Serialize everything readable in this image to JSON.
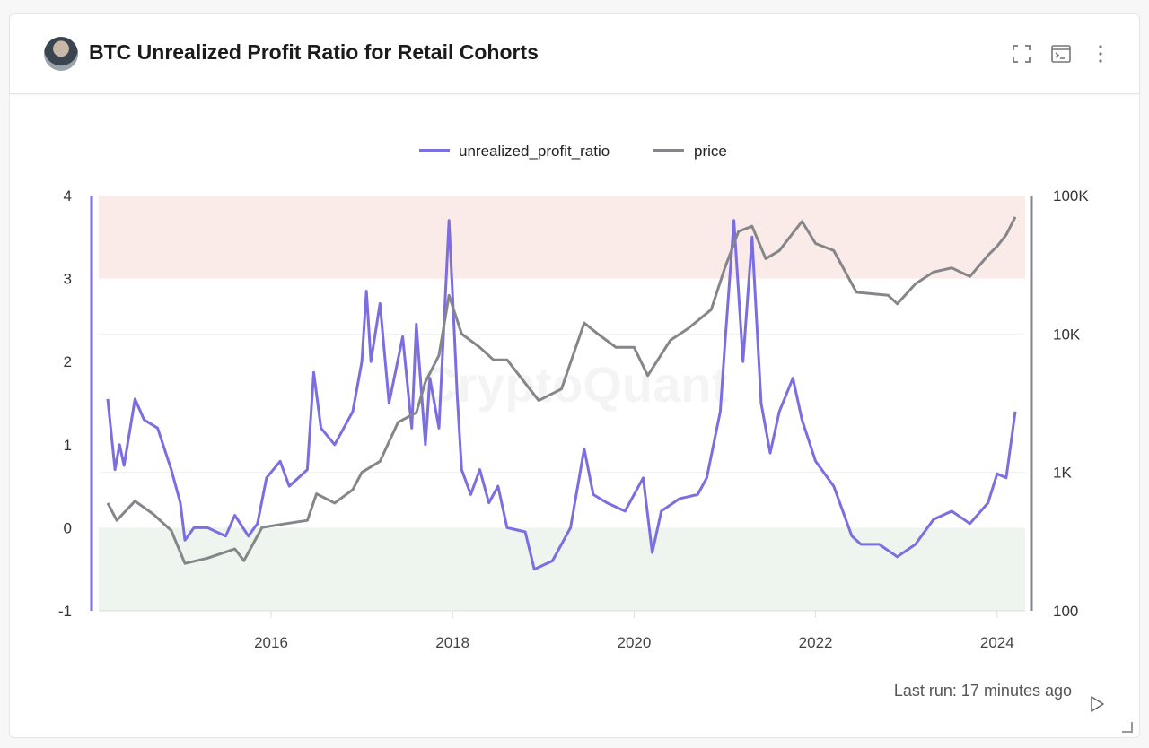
{
  "header": {
    "title": "BTC Unrealized Profit Ratio for Retail Cohorts",
    "icons": [
      "avatar",
      "fullscreen-icon",
      "terminal-icon",
      "more-vertical-icon"
    ]
  },
  "watermark": "CryptoQuant",
  "footer": {
    "last_run": "Last run: 17 minutes ago",
    "icon": "play-icon"
  },
  "chart_data": {
    "type": "line",
    "title": "",
    "legend": "top-center",
    "x_ticks": [
      "2016",
      "2018",
      "2020",
      "2022",
      "2024"
    ],
    "y_left": {
      "range": [
        -1,
        4
      ],
      "ticks": [
        "4",
        "3",
        "2",
        "1",
        "0",
        "-1"
      ]
    },
    "y_right": {
      "scale": "log",
      "range": [
        100,
        100000
      ],
      "ticks": [
        "100K",
        "10K",
        "1K",
        "100"
      ]
    },
    "bands": [
      {
        "from": 3,
        "to": 4,
        "color": "#fbebe8"
      },
      {
        "from": -1,
        "to": 0,
        "color": "#edf5ee"
      }
    ],
    "series": [
      {
        "name": "unrealized_profit_ratio",
        "axis": "left",
        "color": "#7b6ee0",
        "x": [
          2014.2,
          2014.28,
          2014.33,
          2014.38,
          2014.5,
          2014.6,
          2014.75,
          2014.9,
          2015.0,
          2015.05,
          2015.15,
          2015.3,
          2015.5,
          2015.6,
          2015.75,
          2015.85,
          2015.95,
          2016.1,
          2016.2,
          2016.4,
          2016.47,
          2016.55,
          2016.7,
          2016.9,
          2017.0,
          2017.05,
          2017.1,
          2017.2,
          2017.3,
          2017.45,
          2017.55,
          2017.6,
          2017.7,
          2017.75,
          2017.85,
          2017.96,
          2018.0,
          2018.05,
          2018.1,
          2018.2,
          2018.3,
          2018.4,
          2018.5,
          2018.6,
          2018.8,
          2018.9,
          2019.1,
          2019.3,
          2019.45,
          2019.55,
          2019.7,
          2019.9,
          2020.1,
          2020.2,
          2020.3,
          2020.5,
          2020.7,
          2020.8,
          2020.95,
          2021.0,
          2021.1,
          2021.2,
          2021.3,
          2021.4,
          2021.5,
          2021.6,
          2021.75,
          2021.85,
          2022.0,
          2022.2,
          2022.4,
          2022.5,
          2022.7,
          2022.9,
          2023.1,
          2023.3,
          2023.5,
          2023.7,
          2023.9,
          2024.0,
          2024.1,
          2024.2
        ],
        "y": [
          1.55,
          0.7,
          1.0,
          0.75,
          1.55,
          1.3,
          1.2,
          0.7,
          0.3,
          -0.15,
          0.0,
          0.0,
          -0.1,
          0.15,
          -0.1,
          0.05,
          0.6,
          0.8,
          0.5,
          0.7,
          1.87,
          1.2,
          1.0,
          1.4,
          2.0,
          2.85,
          2.0,
          2.7,
          1.5,
          2.3,
          1.2,
          2.45,
          1.0,
          1.8,
          1.2,
          3.7,
          2.8,
          1.6,
          0.7,
          0.4,
          0.7,
          0.3,
          0.5,
          0.0,
          -0.05,
          -0.5,
          -0.4,
          0.0,
          0.95,
          0.4,
          0.3,
          0.2,
          0.6,
          -0.3,
          0.2,
          0.35,
          0.4,
          0.6,
          1.4,
          2.2,
          3.7,
          2.0,
          3.5,
          1.5,
          0.9,
          1.4,
          1.8,
          1.3,
          0.8,
          0.5,
          -0.1,
          -0.2,
          -0.2,
          -0.35,
          -0.2,
          0.1,
          0.2,
          0.05,
          0.3,
          0.65,
          0.6,
          1.4
        ]
      },
      {
        "name": "price",
        "axis": "right",
        "color": "#85868a",
        "x": [
          2014.2,
          2014.3,
          2014.5,
          2014.7,
          2014.9,
          2015.05,
          2015.3,
          2015.6,
          2015.7,
          2015.9,
          2016.1,
          2016.4,
          2016.5,
          2016.7,
          2016.9,
          2017.0,
          2017.2,
          2017.4,
          2017.6,
          2017.7,
          2017.85,
          2017.96,
          2018.1,
          2018.3,
          2018.45,
          2018.6,
          2018.85,
          2018.95,
          2019.2,
          2019.45,
          2019.6,
          2019.8,
          2020.0,
          2020.15,
          2020.4,
          2020.6,
          2020.85,
          2021.0,
          2021.15,
          2021.3,
          2021.45,
          2021.6,
          2021.85,
          2022.0,
          2022.2,
          2022.45,
          2022.8,
          2022.9,
          2023.1,
          2023.3,
          2023.5,
          2023.7,
          2023.9,
          2024.0,
          2024.1,
          2024.2
        ],
        "y": [
          600,
          450,
          620,
          500,
          380,
          220,
          240,
          280,
          230,
          400,
          420,
          450,
          700,
          600,
          750,
          1000,
          1200,
          2300,
          2700,
          4500,
          7000,
          19000,
          10000,
          8000,
          6500,
          6500,
          4000,
          3300,
          4000,
          12000,
          10000,
          8000,
          8000,
          5000,
          9000,
          11000,
          15000,
          30000,
          55000,
          60000,
          35000,
          40000,
          65000,
          45000,
          40000,
          20000,
          19000,
          16500,
          23000,
          28000,
          30000,
          26000,
          37000,
          43000,
          52000,
          70000
        ]
      }
    ]
  }
}
